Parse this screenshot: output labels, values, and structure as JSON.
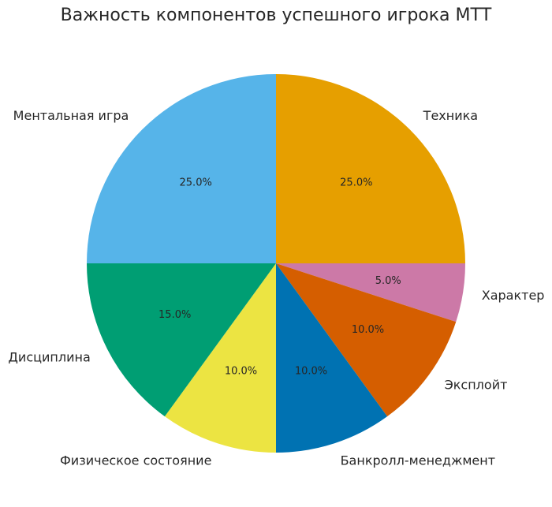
{
  "chart_data": {
    "type": "pie",
    "title": "Важность компонентов успешного игрока МТТ",
    "categories": [
      "Техника",
      "Характер",
      "Эксплойт",
      "Банкролл-менеджмент",
      "Физическое состояние",
      "Дисциплина",
      "Ментальная игра"
    ],
    "values": [
      25,
      5,
      10,
      10,
      10,
      15,
      25
    ],
    "value_labels": [
      "25.0%",
      "5.0%",
      "10.0%",
      "10.0%",
      "10.0%",
      "15.0%",
      "25.0%"
    ],
    "colors": [
      "#e69f00",
      "#cc79a7",
      "#d55e00",
      "#0072b2",
      "#ece442",
      "#009e73",
      "#56b4e9"
    ]
  }
}
